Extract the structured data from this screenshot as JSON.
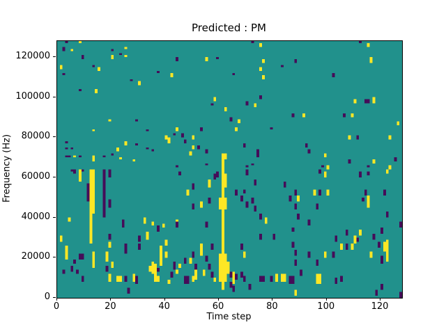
{
  "figure": {
    "title": "Predicted : PM"
  },
  "axes": {
    "xlabel": "Time step",
    "ylabel": "Frequency (Hz)",
    "x_tick_values": [
      0,
      20,
      40,
      60,
      80,
      100,
      120
    ],
    "x_tick_labels": [
      "0",
      "20",
      "40",
      "60",
      "80",
      "100",
      "120"
    ],
    "y_tick_values": [
      0,
      20000,
      40000,
      60000,
      80000,
      100000,
      120000
    ],
    "y_tick_labels": [
      "0",
      "20000",
      "40000",
      "60000",
      "80000",
      "100000",
      "120000"
    ]
  },
  "chart_data": {
    "type": "heatmap",
    "title": "Predicted : PM",
    "xlabel": "Time step",
    "ylabel": "Frequency (Hz)",
    "x_range": [
      0,
      128
    ],
    "y_range": [
      0,
      128000
    ],
    "grid": "off",
    "legend": "none",
    "bin_width_time_steps": 1,
    "bin_height_hz": 1000,
    "colors": {
      "background_mid": "#21918c",
      "high": "#fde725",
      "low": "#450d59"
    },
    "cells_format": "[level(y=high-yellow,p=low-purple), time_step, freq_bottom_kHz, height_bins]",
    "cells": [
      [
        "p",
        3,
        127,
        1
      ],
      [
        "p",
        2,
        123,
        2
      ],
      [
        "p",
        20,
        123,
        1
      ],
      [
        "p",
        9,
        119,
        2
      ],
      [
        "p",
        23,
        121,
        1
      ],
      [
        "p",
        13,
        115,
        1
      ],
      [
        "p",
        2,
        111,
        1
      ],
      [
        "p",
        37,
        112,
        1
      ],
      [
        "p",
        27,
        108,
        1
      ],
      [
        "p",
        8,
        103,
        1
      ],
      [
        "p",
        29,
        88,
        1
      ],
      [
        "p",
        33,
        83,
        1
      ],
      [
        "p",
        3,
        77,
        1
      ],
      [
        "p",
        29,
        76,
        1
      ],
      [
        "p",
        3,
        74,
        1
      ],
      [
        "p",
        5,
        74,
        1
      ],
      [
        "p",
        33,
        74,
        1
      ],
      [
        "p",
        3,
        70,
        1
      ],
      [
        "p",
        4,
        70,
        1
      ],
      [
        "p",
        8,
        70,
        1
      ],
      [
        "p",
        17,
        70,
        1
      ],
      [
        "p",
        20,
        71,
        1
      ],
      [
        "p",
        35,
        73,
        1
      ],
      [
        "y",
        8,
        127,
        1
      ],
      [
        "y",
        5,
        123,
        1
      ],
      [
        "y",
        25,
        124,
        1
      ],
      [
        "y",
        20,
        119,
        2
      ],
      [
        "y",
        25,
        120,
        1
      ],
      [
        "y",
        1,
        114,
        2
      ],
      [
        "y",
        15,
        113,
        2
      ],
      [
        "y",
        30,
        106,
        2
      ],
      [
        "y",
        14,
        102,
        2
      ],
      [
        "y",
        19,
        88,
        1
      ],
      [
        "y",
        13,
        83,
        1
      ],
      [
        "y",
        40,
        79,
        2
      ],
      [
        "y",
        25,
        76,
        2
      ],
      [
        "y",
        22,
        73,
        2
      ],
      [
        "y",
        41,
        77,
        3
      ],
      [
        "y",
        6,
        70,
        1
      ],
      [
        "y",
        13,
        68,
        3
      ],
      [
        "y",
        23,
        69,
        1
      ],
      [
        "y",
        28,
        68,
        1
      ],
      [
        "p",
        72,
        127,
        1
      ],
      [
        "p",
        44,
        118,
        2
      ],
      [
        "p",
        59,
        119,
        1
      ],
      [
        "p",
        83,
        115,
        1
      ],
      [
        "p",
        65,
        111,
        1
      ],
      [
        "p",
        57,
        96,
        1
      ],
      [
        "p",
        70,
        96,
        2
      ],
      [
        "p",
        75,
        99,
        2
      ],
      [
        "p",
        64,
        88,
        2
      ],
      [
        "p",
        53,
        83,
        2
      ],
      [
        "p",
        79,
        84,
        1
      ],
      [
        "p",
        43,
        81,
        1
      ],
      [
        "p",
        46,
        80,
        2
      ],
      [
        "p",
        47,
        77,
        2
      ],
      [
        "p",
        52,
        74,
        2
      ],
      [
        "p",
        55,
        72,
        2
      ],
      [
        "p",
        69,
        75,
        2
      ],
      [
        "p",
        74,
        70,
        4
      ],
      [
        "p",
        72,
        66,
        1
      ],
      [
        "p",
        55,
        66,
        1
      ],
      [
        "p",
        44,
        65,
        1
      ],
      [
        "p",
        70,
        65,
        1
      ],
      [
        "y",
        75,
        125,
        2
      ],
      [
        "y",
        55,
        118,
        2
      ],
      [
        "y",
        76,
        117,
        2
      ],
      [
        "y",
        75,
        113,
        2
      ],
      [
        "y",
        42,
        110,
        2
      ],
      [
        "y",
        76,
        109,
        2
      ],
      [
        "y",
        58,
        98,
        2
      ],
      [
        "y",
        62,
        93,
        2
      ],
      [
        "y",
        73,
        95,
        2
      ],
      [
        "y",
        67,
        87,
        2
      ],
      [
        "y",
        66,
        83,
        2
      ],
      [
        "y",
        44,
        83,
        2
      ],
      [
        "y",
        50,
        79,
        2
      ],
      [
        "y",
        50,
        74,
        2
      ],
      [
        "y",
        49,
        71,
        2
      ],
      [
        "p",
        112,
        127,
        1
      ],
      [
        "p",
        88,
        117,
        2
      ],
      [
        "p",
        102,
        110,
        2
      ],
      [
        "p",
        114,
        97,
        2
      ],
      [
        "p",
        115,
        97,
        2
      ],
      [
        "p",
        87,
        90,
        2
      ],
      [
        "p",
        106,
        90,
        2
      ],
      [
        "p",
        111,
        79,
        2
      ],
      [
        "p",
        92,
        75,
        2
      ],
      [
        "p",
        93,
        72,
        2
      ],
      [
        "p",
        108,
        67,
        2
      ],
      [
        "p",
        115,
        65,
        1
      ],
      [
        "p",
        125,
        68,
        2
      ],
      [
        "p",
        98,
        65,
        1
      ],
      [
        "y",
        115,
        125,
        2
      ],
      [
        "y",
        116,
        117,
        3
      ],
      [
        "y",
        110,
        97,
        2
      ],
      [
        "y",
        117,
        97,
        3
      ],
      [
        "y",
        91,
        90,
        2
      ],
      [
        "y",
        109,
        90,
        2
      ],
      [
        "y",
        126,
        86,
        2
      ],
      [
        "y",
        108,
        79,
        2
      ],
      [
        "y",
        123,
        79,
        2
      ],
      [
        "y",
        99,
        70,
        2
      ],
      [
        "y",
        117,
        67,
        2
      ],
      [
        "y",
        123,
        64,
        2
      ],
      [
        "y",
        100,
        64,
        2
      ],
      [
        "y",
        8,
        58,
        6
      ],
      [
        "y",
        12,
        27,
        37
      ],
      [
        "y",
        13,
        42,
        22
      ],
      [
        "y",
        4,
        38,
        2
      ],
      [
        "y",
        32,
        37,
        3
      ],
      [
        "y",
        35,
        36,
        2
      ],
      [
        "y",
        39,
        35,
        2
      ],
      [
        "y",
        33,
        29,
        4
      ],
      [
        "y",
        1,
        28,
        3
      ],
      [
        "y",
        3,
        19,
        7
      ],
      [
        "y",
        13,
        15,
        8
      ],
      [
        "y",
        18,
        18,
        5
      ],
      [
        "y",
        20,
        15,
        3
      ],
      [
        "y",
        34,
        13,
        3
      ],
      [
        "y",
        35,
        12,
        6
      ],
      [
        "y",
        36,
        8,
        9
      ],
      [
        "y",
        38,
        16,
        10
      ],
      [
        "y",
        40,
        26,
        3
      ],
      [
        "y",
        40,
        20,
        3
      ],
      [
        "y",
        19,
        8,
        4
      ],
      [
        "y",
        22,
        8,
        3
      ],
      [
        "y",
        23,
        8,
        3
      ],
      [
        "y",
        28,
        8,
        4
      ],
      [
        "y",
        41,
        7,
        2
      ],
      [
        "y",
        19,
        25,
        3
      ],
      [
        "y",
        37,
        8,
        3
      ],
      [
        "p",
        5,
        63,
        1
      ],
      [
        "p",
        6,
        62,
        2
      ],
      [
        "p",
        9,
        63,
        1
      ],
      [
        "p",
        17,
        40,
        24
      ],
      [
        "p",
        19,
        60,
        4
      ],
      [
        "p",
        19,
        45,
        4
      ],
      [
        "p",
        19,
        29,
        3
      ],
      [
        "p",
        11,
        48,
        9
      ],
      [
        "p",
        24,
        35,
        4
      ],
      [
        "p",
        25,
        22,
        5
      ],
      [
        "p",
        30,
        28,
        3
      ],
      [
        "p",
        30,
        24,
        3
      ],
      [
        "p",
        9,
        19,
        3
      ],
      [
        "p",
        8,
        19,
        3
      ],
      [
        "p",
        6,
        17,
        2
      ],
      [
        "p",
        5,
        13,
        3
      ],
      [
        "p",
        2,
        12,
        2
      ],
      [
        "p",
        7,
        12,
        2
      ],
      [
        "p",
        9,
        8,
        3
      ],
      [
        "p",
        18,
        13,
        3
      ],
      [
        "p",
        25,
        8,
        3
      ],
      [
        "p",
        29,
        7,
        4
      ],
      [
        "p",
        26,
        2,
        3
      ],
      [
        "p",
        37,
        33,
        3
      ],
      [
        "p",
        37,
        13,
        2
      ],
      [
        "y",
        61,
        4,
        68
      ],
      [
        "y",
        62,
        55,
        7
      ],
      [
        "y",
        62,
        69,
        3
      ],
      [
        "y",
        60,
        44,
        6
      ],
      [
        "y",
        62,
        44,
        6
      ],
      [
        "y",
        60,
        8,
        14
      ],
      [
        "y",
        62,
        8,
        14
      ],
      [
        "y",
        63,
        12,
        6
      ],
      [
        "y",
        56,
        55,
        4
      ],
      [
        "y",
        48,
        51,
        3
      ],
      [
        "y",
        53,
        45,
        3
      ],
      [
        "y",
        44,
        37,
        2
      ],
      [
        "y",
        77,
        37,
        3
      ],
      [
        "y",
        53,
        21,
        6
      ],
      [
        "y",
        69,
        20,
        3
      ],
      [
        "y",
        49,
        17,
        3
      ],
      [
        "y",
        54,
        11,
        3
      ],
      [
        "y",
        51,
        9,
        5
      ],
      [
        "y",
        45,
        15,
        2
      ],
      [
        "y",
        44,
        12,
        2
      ],
      [
        "y",
        50,
        8,
        3
      ],
      [
        "y",
        58,
        8,
        2
      ],
      [
        "y",
        65,
        7,
        6
      ],
      [
        "y",
        81,
        8,
        4
      ],
      [
        "y",
        83,
        8,
        4
      ],
      [
        "y",
        84,
        8,
        4
      ],
      [
        "p",
        45,
        61,
        2
      ],
      [
        "p",
        58,
        59,
        3
      ],
      [
        "p",
        59,
        60,
        3
      ],
      [
        "p",
        50,
        54,
        3
      ],
      [
        "p",
        70,
        61,
        3
      ],
      [
        "p",
        73,
        56,
        3
      ],
      [
        "p",
        84,
        55,
        3
      ],
      [
        "p",
        66,
        51,
        3
      ],
      [
        "p",
        68,
        48,
        3
      ],
      [
        "p",
        69,
        52,
        2
      ],
      [
        "p",
        72,
        47,
        3
      ],
      [
        "p",
        70,
        45,
        3
      ],
      [
        "p",
        73,
        43,
        3
      ],
      [
        "p",
        50,
        44,
        3
      ],
      [
        "p",
        56,
        47,
        3
      ],
      [
        "p",
        75,
        39,
        3
      ],
      [
        "p",
        44,
        35,
        3
      ],
      [
        "p",
        55,
        35,
        3
      ],
      [
        "p",
        75,
        29,
        3
      ],
      [
        "p",
        80,
        29,
        3
      ],
      [
        "p",
        57,
        24,
        3
      ],
      [
        "p",
        68,
        24,
        3
      ],
      [
        "p",
        50,
        20,
        3
      ],
      [
        "p",
        47,
        17,
        3
      ],
      [
        "p",
        55,
        18,
        3
      ],
      [
        "p",
        56,
        14,
        3
      ],
      [
        "p",
        43,
        14,
        4
      ],
      [
        "p",
        42,
        10,
        3
      ],
      [
        "p",
        47,
        7,
        4
      ],
      [
        "p",
        48,
        7,
        4
      ],
      [
        "p",
        57,
        10,
        3
      ],
      [
        "p",
        64,
        10,
        3
      ],
      [
        "p",
        66,
        9,
        3
      ],
      [
        "p",
        68,
        10,
        3
      ],
      [
        "p",
        69,
        8,
        3
      ],
      [
        "p",
        64,
        5,
        3
      ],
      [
        "p",
        65,
        3,
        3
      ],
      [
        "p",
        75,
        8,
        3
      ],
      [
        "p",
        76,
        8,
        3
      ],
      [
        "p",
        79,
        8,
        3
      ],
      [
        "p",
        71,
        4,
        3
      ],
      [
        "p",
        51,
        14,
        3
      ],
      [
        "y",
        99,
        60,
        3
      ],
      [
        "y",
        122,
        62,
        2
      ],
      [
        "y",
        95,
        51,
        3
      ],
      [
        "y",
        100,
        51,
        3
      ],
      [
        "y",
        89,
        48,
        3
      ],
      [
        "y",
        115,
        45,
        6
      ],
      [
        "y",
        112,
        31,
        3
      ],
      [
        "y",
        110,
        27,
        4
      ],
      [
        "y",
        105,
        24,
        3
      ],
      [
        "y",
        109,
        24,
        3
      ],
      [
        "y",
        121,
        23,
        5
      ],
      [
        "y",
        122,
        18,
        11
      ],
      [
        "y",
        116,
        20,
        3
      ],
      [
        "y",
        99,
        20,
        3
      ],
      [
        "y",
        96,
        7,
        5
      ],
      [
        "y",
        97,
        7,
        5
      ],
      [
        "y",
        88,
        1,
        3
      ],
      [
        "p",
        97,
        62,
        2
      ],
      [
        "p",
        112,
        60,
        3
      ],
      [
        "p",
        115,
        61,
        2
      ],
      [
        "p",
        88,
        51,
        3
      ],
      [
        "p",
        97,
        51,
        3
      ],
      [
        "p",
        86,
        48,
        3
      ],
      [
        "p",
        88,
        44,
        3
      ],
      [
        "p",
        96,
        44,
        3
      ],
      [
        "p",
        114,
        51,
        3
      ],
      [
        "p",
        113,
        48,
        2
      ],
      [
        "p",
        121,
        51,
        3
      ],
      [
        "p",
        122,
        40,
        3
      ],
      [
        "p",
        89,
        39,
        3
      ],
      [
        "p",
        93,
        36,
        3
      ],
      [
        "p",
        87,
        33,
        2
      ],
      [
        "p",
        107,
        31,
        3
      ],
      [
        "p",
        111,
        28,
        2
      ],
      [
        "p",
        103,
        28,
        3
      ],
      [
        "p",
        107,
        24,
        3
      ],
      [
        "p",
        117,
        29,
        3
      ],
      [
        "p",
        120,
        32,
        3
      ],
      [
        "p",
        127,
        35,
        3
      ],
      [
        "p",
        120,
        17,
        4
      ],
      [
        "p",
        119,
        25,
        3
      ],
      [
        "p",
        87,
        25,
        3
      ],
      [
        "p",
        88,
        21,
        3
      ],
      [
        "p",
        93,
        20,
        3
      ],
      [
        "p",
        102,
        20,
        3
      ],
      [
        "p",
        96,
        16,
        3
      ],
      [
        "p",
        88,
        16,
        3
      ],
      [
        "p",
        90,
        11,
        3
      ],
      [
        "p",
        86,
        7,
        4
      ],
      [
        "p",
        87,
        7,
        4
      ],
      [
        "p",
        103,
        7,
        3
      ],
      [
        "p",
        105,
        8,
        3
      ],
      [
        "p",
        120,
        4,
        3
      ],
      [
        "p",
        118,
        1,
        3
      ],
      [
        "p",
        127,
        0,
        3
      ]
    ]
  }
}
